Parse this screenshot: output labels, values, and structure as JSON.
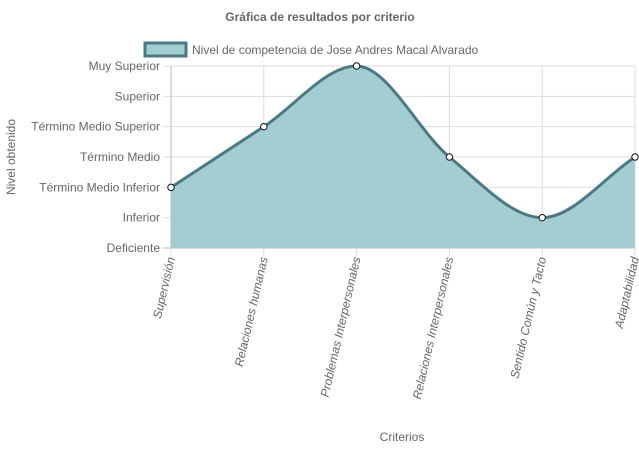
{
  "chart_data": {
    "type": "area",
    "title": "Gráfica de resultados por criterio",
    "xlabel": "Criterios",
    "ylabel": "Nivel obtenido",
    "categories": [
      "Supervisión",
      "Relaciones humanas",
      "Problemas Interpersonales",
      "Relaciones Interpersonales",
      "Sentido Común y Tacto",
      "Adaptabilidad"
    ],
    "y_levels": [
      "Deficiente",
      "Inferior",
      "Término Medio Inferior",
      "Término Medio",
      "Término Medio Superior",
      "Superior",
      "Muy Superior"
    ],
    "ylim": [
      0,
      6
    ],
    "grid": true,
    "legend_position": "top",
    "series": [
      {
        "name": "Nivel de competencia de Jose Andres Macal Alvarado",
        "values": [
          2,
          4,
          6,
          3,
          1,
          3
        ],
        "fill_color": "#a3ced1",
        "line_color": "#4c7a84",
        "point_color": "#ffffff"
      }
    ],
    "text_color": "#666666",
    "grid_color": "#dddddd"
  }
}
